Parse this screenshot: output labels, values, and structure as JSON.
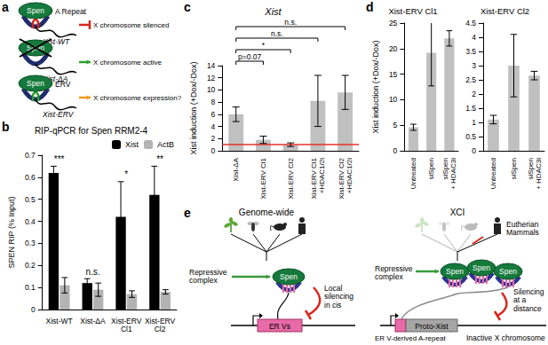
{
  "chart_data": [
    {
      "panel": "b",
      "type": "bar",
      "title": "RIP-qPCR for Spen RRM2-4",
      "ylabel": "SPEN RIP (% Input)",
      "categories": [
        "Xist-WT",
        "Xist-ΔA",
        "Xist-ERV Cl1",
        "Xist-ERV Cl2"
      ],
      "series": [
        {
          "name": "Xist",
          "color": "#000000",
          "values": [
            0.62,
            0.12,
            0.42,
            0.52
          ],
          "errors": [
            0.03,
            0.02,
            0.16,
            0.13
          ]
        },
        {
          "name": "ActB",
          "color": "#b3b3b3",
          "values": [
            0.11,
            0.09,
            0.07,
            0.08
          ],
          "errors": [
            0.035,
            0.03,
            0.015,
            0.01
          ]
        }
      ],
      "significance": [
        "***",
        "n.s.",
        "*",
        "**"
      ],
      "ylim": [
        0,
        0.7
      ],
      "yticks": [
        0,
        0.1,
        0.2,
        0.3,
        0.4,
        0.5,
        0.6,
        0.7
      ],
      "grid": false,
      "legend": "top-right"
    },
    {
      "panel": "c",
      "type": "bar",
      "title": "Xist",
      "ylabel": "Xist induction (+Dox/-Dox)",
      "categories": [
        "Xist-ΔA",
        "Xist-ERV Cl1",
        "Xist-ERV Cl2",
        "Xist-ERV Cl1 +HDAC1/2i",
        "Xist-ERV Cl2 +HDAC1/2i"
      ],
      "values": [
        6.0,
        1.8,
        1.0,
        8.2,
        9.6
      ],
      "errors": [
        1.2,
        0.6,
        0.3,
        4.2,
        2.8
      ],
      "color": "#c0c0c0",
      "reference_line": {
        "y": 1,
        "color": "#e8302a"
      },
      "comparisons": [
        {
          "from": "Xist-ΔA",
          "to": "Xist-ERV Cl1",
          "label": "p=0.07"
        },
        {
          "from": "Xist-ΔA",
          "to": "Xist-ERV Cl2",
          "label": "*"
        },
        {
          "from": "Xist-ΔA",
          "to": "Xist-ERV Cl1 +HDAC1/2i",
          "label": "n.s."
        },
        {
          "from": "Xist-ΔA",
          "to": "Xist-ERV Cl2 +HDAC1/2i",
          "label": "n.s."
        }
      ],
      "ylim": [
        0,
        14
      ],
      "yticks": [
        0,
        2,
        4,
        6,
        8,
        10,
        12,
        14
      ],
      "grid": false
    },
    {
      "panel": "d",
      "type": "bar",
      "title": "Xist-ERV Cl1",
      "ylabel": "Xist induction (+Dox/-Dox)",
      "categories": [
        "Untreated",
        "siSpen",
        "siSpen + HDAC3i"
      ],
      "values": [
        4.6,
        19.2,
        22.0
      ],
      "errors": [
        0.6,
        6.5,
        1.5
      ],
      "color": "#c0c0c0",
      "ylim": [
        0,
        25
      ],
      "yticks": [
        0,
        5,
        10,
        15,
        20,
        25
      ],
      "grid": false
    },
    {
      "type": "bar",
      "title": "Xist-ERV Cl2",
      "categories": [
        "Untreated",
        "siSpen",
        "siSpen + HDAC3i"
      ],
      "values": [
        1.1,
        3.0,
        2.65
      ],
      "errors": [
        0.15,
        1.1,
        0.15
      ],
      "color": "#c0c0c0",
      "ylim": [
        0,
        4.5
      ],
      "yticks": [
        0,
        0.5,
        1,
        1.5,
        2,
        2.5,
        3,
        3.5,
        4,
        4.5
      ],
      "grid": false
    }
  ],
  "diagrams": {
    "a": {
      "panel": "a",
      "rows": [
        {
          "protein": "Spen",
          "element": "A Repeat",
          "construct": "Xist-WT",
          "outcome": "X chromosome silenced"
        },
        {
          "protein": "Spen",
          "construct": "Xist-ΔA",
          "outcome": "X chromosome active"
        },
        {
          "protein": "Spen",
          "element": "ERV",
          "construct": "Xist-ERV",
          "outcome": "X chromosome expression?"
        }
      ]
    },
    "e": {
      "panel": "e",
      "left": {
        "title": "Genome-wide",
        "complex": "Repressive complex",
        "protein": "Spen",
        "effect": "Local silencing in cis",
        "target": "ER Vs"
      },
      "right": {
        "title": "XCI",
        "clade": "Eutherian Mammals",
        "complex": "Repressive complex",
        "proteins": [
          "Spen",
          "Spen",
          "Spen"
        ],
        "effect": "Silencing at a distance",
        "element": "ER V-derived A-repeat",
        "gene": "Proto-Xist",
        "chromosome": "Inactive X chromosome"
      }
    }
  }
}
